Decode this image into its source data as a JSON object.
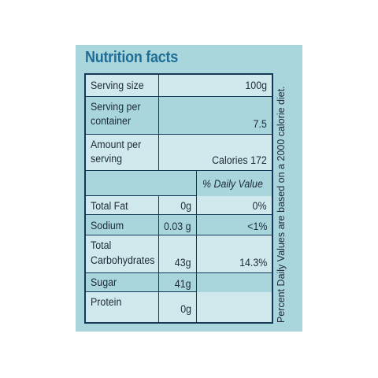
{
  "title": "Nutrition facts",
  "rows": {
    "serving_size": {
      "label": "Serving size",
      "value": "100g"
    },
    "serving_per_container": {
      "label_line1": "Serving per",
      "label_line2": "container",
      "value": "7.5"
    },
    "amount_per_serving": {
      "label_line1": "Amount per",
      "label_line2": "serving",
      "value": "Calories 172"
    },
    "daily_value_header": "% Daily Value",
    "total_fat": {
      "label": "Total Fat",
      "amount": "0g",
      "daily": "0%"
    },
    "sodium": {
      "label": "Sodium",
      "amount": "0.03 g",
      "daily": "<1%"
    },
    "total_carbohydrates": {
      "label_line1": "Total",
      "label_line2": "Carbohydrates",
      "amount": "43g",
      "daily": "14.3%"
    },
    "sugar": {
      "label": "Sugar",
      "amount": "41g"
    },
    "protein": {
      "label": "Protein",
      "amount": "0g"
    }
  },
  "footnote": "Percent Daily Values are based on a 2000 calorie diet.",
  "colors": {
    "panel": "#a8d6dc",
    "stripe": "#cfe9ec",
    "title": "#1f6d96",
    "lines": "#14375a"
  }
}
